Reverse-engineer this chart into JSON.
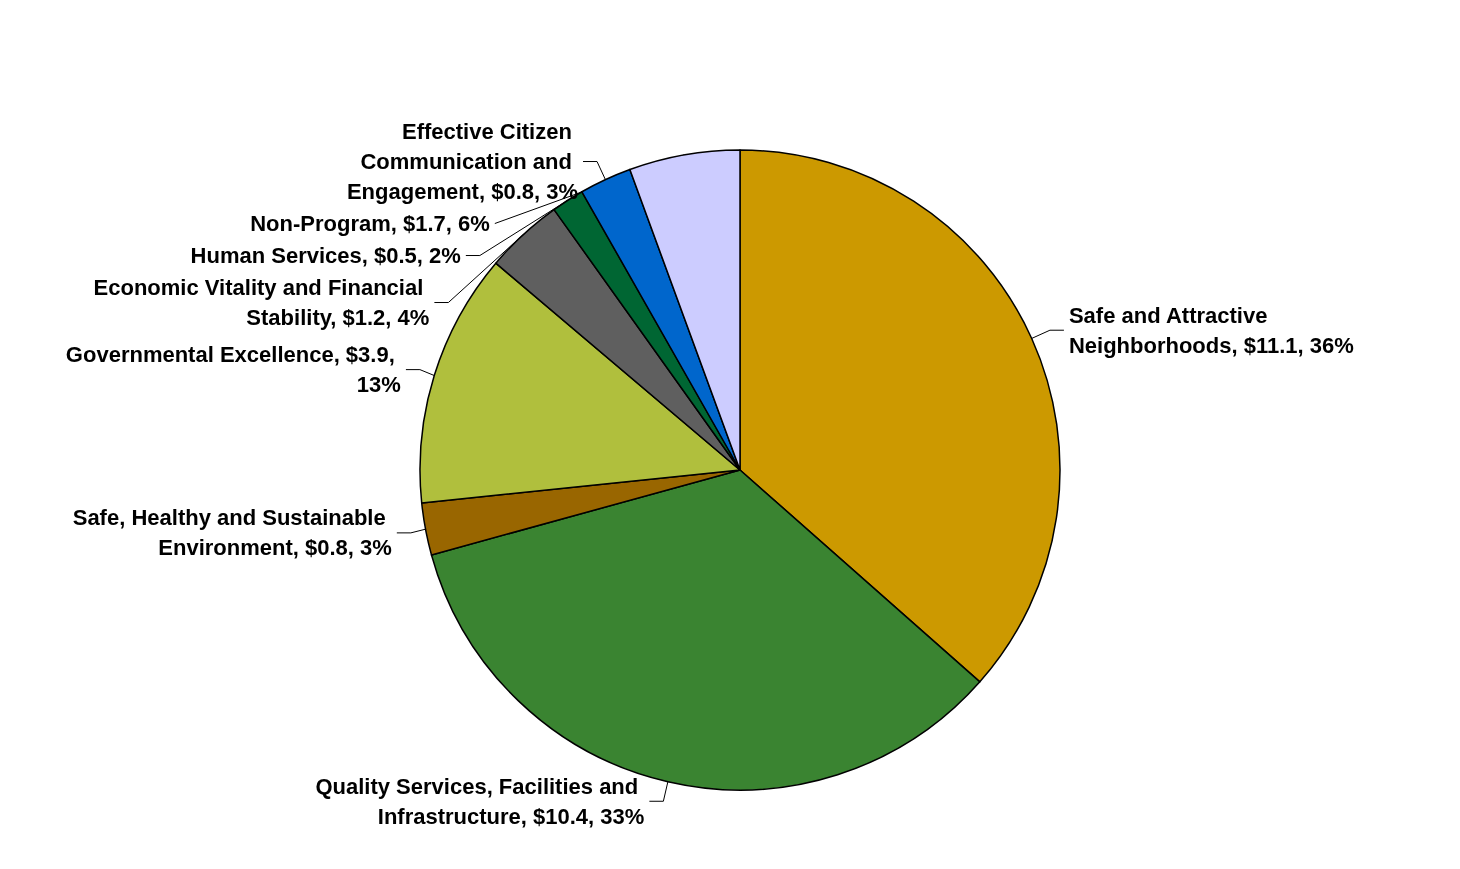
{
  "chart_data": {
    "type": "pie",
    "categories": [
      "Safe and Attractive Neighborhoods",
      "Quality Services, Facilities and Infrastructure",
      "Safe, Healthy and Sustainable Environment",
      "Governmental Excellence",
      "Economic Vitality and Financial Stability",
      "Human Services",
      "Effective Citizen Communication and Engagement",
      "Non-Program"
    ],
    "values": [
      11.1,
      10.4,
      0.8,
      3.9,
      1.2,
      0.5,
      0.8,
      1.7
    ],
    "value_labels": [
      "$11.1, 36%",
      "$10.4, 33%",
      "$0.8, 3%",
      "$3.9, 13%",
      "$1.2, 4%",
      "$0.5, 2%",
      "$0.8, 3%",
      "$1.7, 6%"
    ],
    "colors": [
      "#cc9900",
      "#3a8431",
      "#996600",
      "#b0bf3d",
      "#5f5f5f",
      "#006633",
      "#0066cc",
      "#ccccff"
    ],
    "legend": false
  }
}
